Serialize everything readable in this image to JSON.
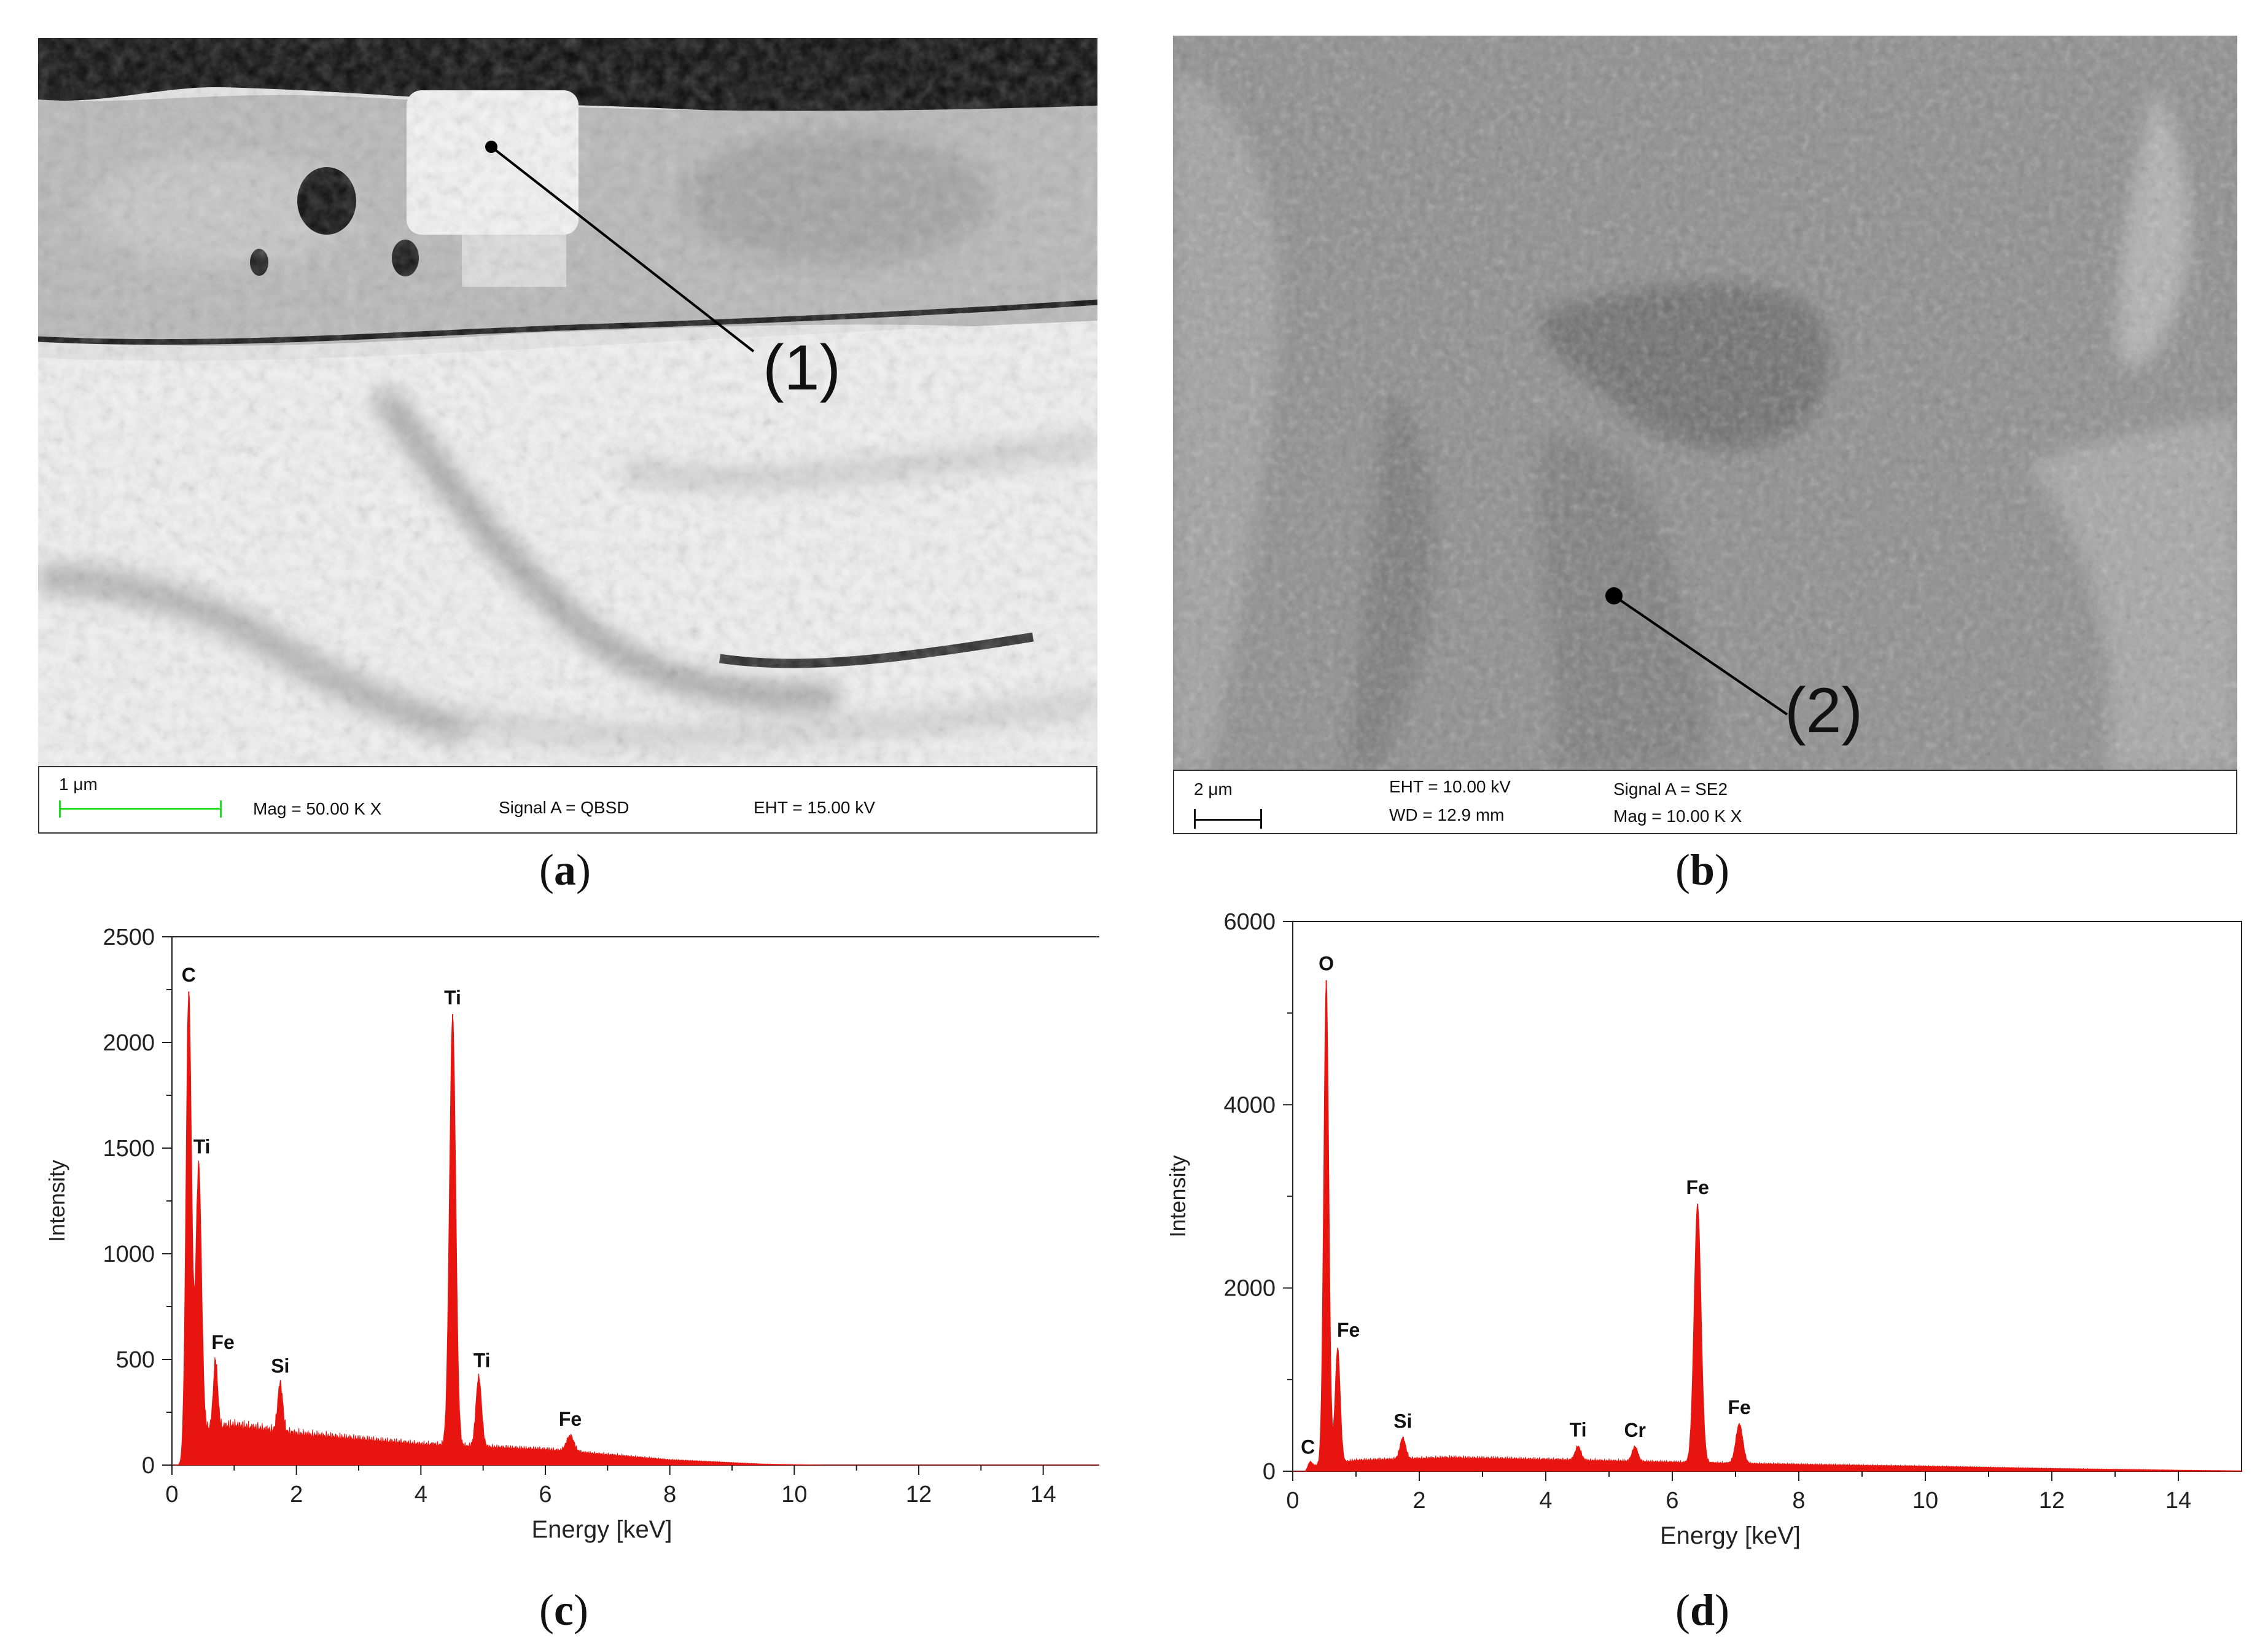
{
  "panels": {
    "a": {
      "label": "a",
      "callout": "(1)",
      "scale_text": "1 μm",
      "mag": "Mag =  50.00 K X",
      "signal": "Signal A = QBSD",
      "eht": "EHT = 15.00 kV"
    },
    "b": {
      "label": "b",
      "callout": "(2)",
      "scale_text": "2 μm",
      "eht": "EHT = 10.00 kV",
      "wd": "WD = 12.9 mm",
      "signal": "Signal A = SE2",
      "mag": "Mag =  10.00 K X"
    },
    "c": {
      "label": "c"
    },
    "d": {
      "label": "d"
    }
  },
  "colors": {
    "spectrum": "#e8140f",
    "scale_bar_a": "#22dd22"
  },
  "chart_data": [
    {
      "type": "area",
      "id": "c",
      "xlabel": "Energy [keV]",
      "ylabel": "Intensity",
      "xlim": [
        0,
        15
      ],
      "ylim": [
        0,
        2500
      ],
      "xticks": [
        0,
        2,
        4,
        6,
        8,
        10,
        12,
        14
      ],
      "yticks": [
        0,
        500,
        1000,
        1500,
        2000,
        2500
      ],
      "peaks": [
        {
          "x": 0.27,
          "y": 2080,
          "w": 0.045
        },
        {
          "x": 0.43,
          "y": 1260,
          "w": 0.045
        },
        {
          "x": 0.7,
          "y": 320,
          "w": 0.035
        },
        {
          "x": 1.74,
          "y": 230,
          "w": 0.04
        },
        {
          "x": 4.51,
          "y": 2040,
          "w": 0.05
        },
        {
          "x": 4.93,
          "y": 330,
          "w": 0.045
        },
        {
          "x": 6.4,
          "y": 75,
          "w": 0.06
        }
      ],
      "background": [
        [
          0.2,
          0
        ],
        [
          0.25,
          160
        ],
        [
          1.0,
          190
        ],
        [
          2.0,
          150
        ],
        [
          4.0,
          100
        ],
        [
          6.0,
          75
        ],
        [
          8.0,
          25
        ],
        [
          9.5,
          5
        ],
        [
          10.5,
          0
        ]
      ],
      "annotations": [
        {
          "text": "C",
          "x": 0.27,
          "y": 2080
        },
        {
          "text": "Ti",
          "x": 0.48,
          "y": 1260
        },
        {
          "text": "Fe",
          "x": 0.82,
          "y": 320
        },
        {
          "text": "Si",
          "x": 1.74,
          "y": 230
        },
        {
          "text": "Ti",
          "x": 4.51,
          "y": 2040
        },
        {
          "text": "Ti",
          "x": 4.98,
          "y": 330
        },
        {
          "text": "Fe",
          "x": 6.4,
          "y": 75
        }
      ]
    },
    {
      "type": "area",
      "id": "d",
      "xlabel": "Energy [keV]",
      "ylabel": "Intensity",
      "xlim": [
        0,
        15
      ],
      "ylim": [
        0,
        6000
      ],
      "xticks": [
        0,
        2,
        4,
        6,
        8,
        10,
        12,
        14
      ],
      "yticks": [
        0,
        2000,
        4000,
        6000
      ],
      "peaks": [
        {
          "x": 0.27,
          "y": 60,
          "w": 0.03
        },
        {
          "x": 0.53,
          "y": 5280,
          "w": 0.04
        },
        {
          "x": 0.71,
          "y": 1250,
          "w": 0.04
        },
        {
          "x": 1.74,
          "y": 230,
          "w": 0.045
        },
        {
          "x": 4.51,
          "y": 150,
          "w": 0.045
        },
        {
          "x": 5.41,
          "y": 160,
          "w": 0.045
        },
        {
          "x": 6.4,
          "y": 2820,
          "w": 0.055
        },
        {
          "x": 7.06,
          "y": 430,
          "w": 0.055
        }
      ],
      "background": [
        [
          0.2,
          0
        ],
        [
          0.3,
          60
        ],
        [
          1.0,
          120
        ],
        [
          2.5,
          150
        ],
        [
          4.0,
          130
        ],
        [
          6.0,
          100
        ],
        [
          8.0,
          75
        ],
        [
          10.0,
          55
        ],
        [
          12.0,
          30
        ],
        [
          14.0,
          12
        ],
        [
          15.0,
          5
        ]
      ],
      "annotations": [
        {
          "text": "O",
          "x": 0.53,
          "y": 5280
        },
        {
          "text": "C",
          "x": 0.24,
          "y": 60
        },
        {
          "text": "Fe",
          "x": 0.88,
          "y": 1250
        },
        {
          "text": "Si",
          "x": 1.74,
          "y": 230
        },
        {
          "text": "Ti",
          "x": 4.51,
          "y": 150
        },
        {
          "text": "Cr",
          "x": 5.41,
          "y": 160
        },
        {
          "text": "Fe",
          "x": 6.4,
          "y": 2820
        },
        {
          "text": "Fe",
          "x": 7.06,
          "y": 430
        }
      ]
    }
  ]
}
